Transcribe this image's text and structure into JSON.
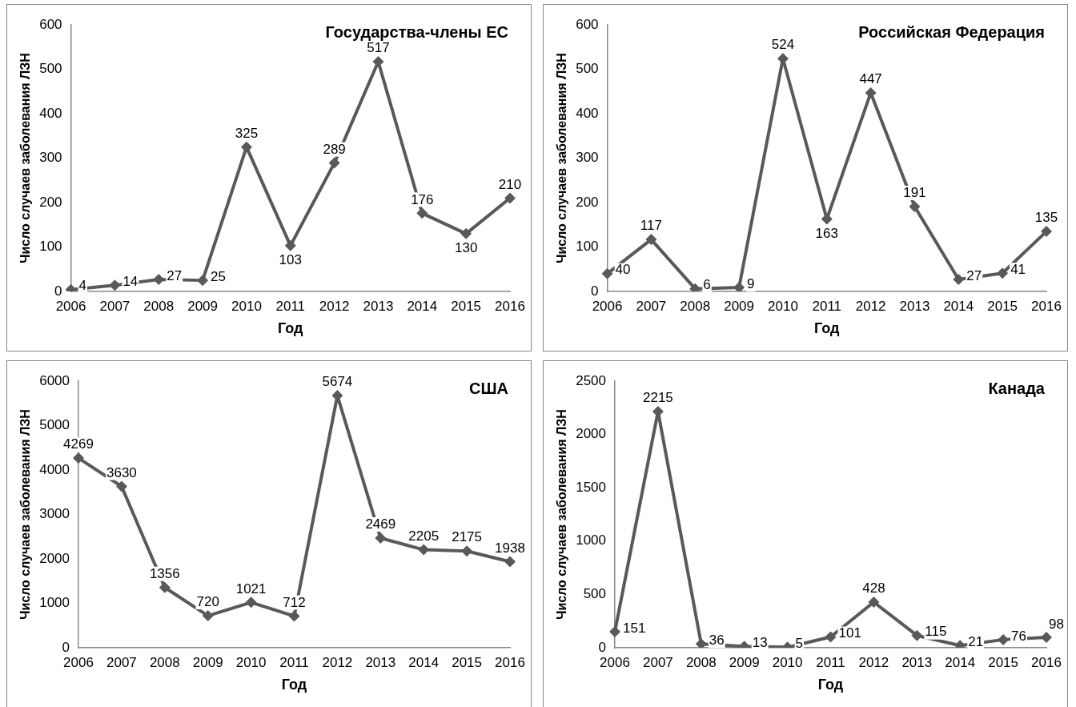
{
  "chart_data": [
    {
      "type": "line",
      "title": "Государства-члены ЕС",
      "xlabel": "Год",
      "ylabel": "Число случаев заболевания ЛЗН",
      "categories": [
        "2006",
        "2007",
        "2008",
        "2009",
        "2010",
        "2011",
        "2012",
        "2013",
        "2014",
        "2015",
        "2016"
      ],
      "series": [
        {
          "color": "#595959",
          "values": [
            4,
            14,
            27,
            25,
            325,
            103,
            289,
            517,
            176,
            130,
            210
          ]
        }
      ],
      "ylim": [
        0,
        600
      ],
      "yticks": [
        0,
        100,
        200,
        300,
        400,
        500,
        600
      ],
      "grid": false,
      "legend": false,
      "marker": "diamond",
      "line_style": "solid",
      "data_labels": true
    },
    {
      "type": "line",
      "title": "Российская Федерация",
      "xlabel": "Год",
      "ylabel": "Число случаев заболевания ЛЗН",
      "categories": [
        "2006",
        "2007",
        "2008",
        "2009",
        "2010",
        "2011",
        "2012",
        "2013",
        "2014",
        "2015",
        "2016"
      ],
      "series": [
        {
          "color": "#595959",
          "values": [
            40,
            117,
            6,
            9,
            524,
            163,
            447,
            191,
            27,
            41,
            135
          ]
        }
      ],
      "ylim": [
        0,
        600
      ],
      "yticks": [
        0,
        100,
        200,
        300,
        400,
        500,
        600
      ],
      "grid": false,
      "legend": false,
      "marker": "diamond",
      "line_style": "solid",
      "data_labels": true
    },
    {
      "type": "line",
      "title": "США",
      "xlabel": "Год",
      "ylabel": "Число случаев заболевания ЛЗН",
      "categories": [
        "2006",
        "2007",
        "2008",
        "2009",
        "2010",
        "2011",
        "2012",
        "2013",
        "2014",
        "2015",
        "2016"
      ],
      "series": [
        {
          "color": "#595959",
          "values": [
            4269,
            3630,
            1356,
            720,
            1021,
            712,
            5674,
            2469,
            2205,
            2175,
            1938
          ]
        }
      ],
      "ylim": [
        0,
        6000
      ],
      "yticks": [
        0,
        1000,
        2000,
        3000,
        4000,
        5000,
        6000
      ],
      "grid": false,
      "legend": false,
      "marker": "diamond",
      "line_style": "solid",
      "data_labels": true
    },
    {
      "type": "line",
      "title": "Канада",
      "xlabel": "Год",
      "ylabel": "Число случаев заболевания ЛЗН",
      "categories": [
        "2006",
        "2007",
        "2008",
        "2009",
        "2010",
        "2011",
        "2012",
        "2013",
        "2014",
        "2015",
        "2016"
      ],
      "series": [
        {
          "color": "#595959",
          "values": [
            151,
            2215,
            36,
            13,
            5,
            101,
            428,
            115,
            21,
            76,
            98
          ]
        }
      ],
      "ylim": [
        0,
        2500
      ],
      "yticks": [
        0,
        500,
        1000,
        1500,
        2000,
        2500
      ],
      "grid": false,
      "legend": false,
      "marker": "diamond",
      "line_style": "solid",
      "data_labels": true
    }
  ]
}
